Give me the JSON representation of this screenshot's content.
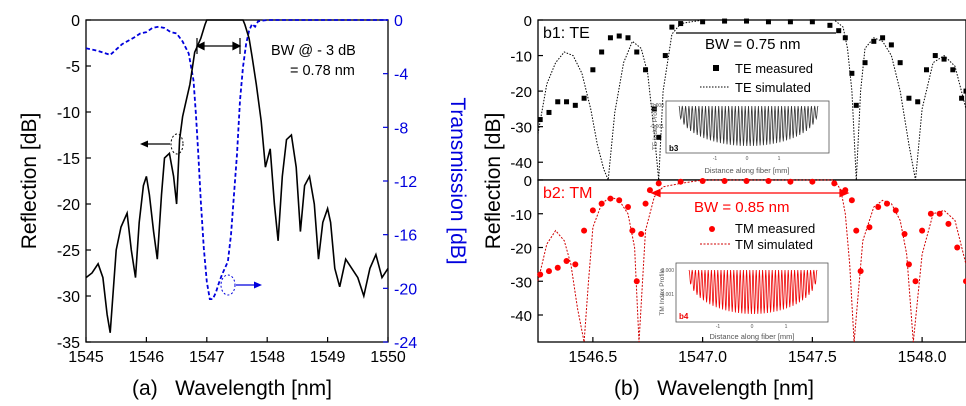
{
  "chart_data": [
    {
      "panel_label": "(a)",
      "type": "line",
      "xlabel": "Wavelength [nm]",
      "ylabel": "Reflection [dB]",
      "ylabel_right": "Transmission [dB]",
      "xlim": [
        1545,
        1550
      ],
      "ylim": [
        -35,
        0
      ],
      "ylim_right": [
        -24,
        0
      ],
      "x_ticks": [
        "1545",
        "1546",
        "1547",
        "1548",
        "1549",
        "1550"
      ],
      "y_ticks": [
        "0",
        "-5",
        "-10",
        "-15",
        "-20",
        "-25",
        "-30",
        "-35"
      ],
      "y_ticks_right": [
        "0",
        "-4",
        "-8",
        "-12",
        "-16",
        "-20",
        "-24"
      ],
      "annotation": [
        "BW @ - 3 dB",
        "= 0.78 nm"
      ],
      "colors": {
        "reflection": "#000000",
        "transmission": "#0000dd"
      },
      "series": [
        {
          "axis": "left",
          "style": "solid",
          "x": [
            1545.0,
            1545.1,
            1545.2,
            1545.28,
            1545.35,
            1545.4,
            1545.5,
            1545.58,
            1545.68,
            1545.75,
            1545.82,
            1545.88,
            1545.95,
            1546.0,
            1546.05,
            1546.12,
            1546.18,
            1546.25,
            1546.3,
            1546.38,
            1546.45,
            1546.5,
            1546.55,
            1546.6,
            1546.65,
            1546.72,
            1546.8,
            1546.9,
            1546.97,
            1547.0,
            1547.6,
            1547.63,
            1547.7,
            1547.75,
            1547.82,
            1547.9,
            1547.97,
            1548.05,
            1548.12,
            1548.18,
            1548.25,
            1548.32,
            1548.4,
            1548.48,
            1548.55,
            1548.62,
            1548.7,
            1548.78,
            1548.85,
            1548.92,
            1549.0,
            1549.05,
            1549.12,
            1549.2,
            1549.3,
            1549.4,
            1549.5,
            1549.6,
            1549.7,
            1549.8,
            1549.9,
            1550.0
          ],
          "y": [
            -28,
            -27.5,
            -26.5,
            -28,
            -32,
            -34,
            -25,
            -22.5,
            -21,
            -25,
            -28,
            -22,
            -18,
            -17,
            -19,
            -23,
            -26,
            -19,
            -15,
            -14.5,
            -17,
            -20,
            -13,
            -10.5,
            -9,
            -7,
            -3.5,
            -2,
            -0.5,
            0,
            0,
            -0.5,
            -2,
            -4,
            -7,
            -11,
            -16,
            -14,
            -20,
            -24,
            -17,
            -13,
            -12.5,
            -16,
            -23,
            -18,
            -17,
            -20,
            -26,
            -22,
            -20.5,
            -22,
            -27,
            -29,
            -26,
            -27,
            -28,
            -30,
            -27,
            -25.5,
            -28,
            -27
          ]
        },
        {
          "axis": "right",
          "style": "dashed",
          "x": [
            1545.0,
            1545.2,
            1545.4,
            1545.6,
            1545.8,
            1545.9,
            1546.0,
            1546.1,
            1546.2,
            1546.3,
            1546.4,
            1546.5,
            1546.6,
            1546.7,
            1546.78,
            1546.82,
            1546.86,
            1546.9,
            1546.95,
            1547.0,
            1547.05,
            1547.1,
            1547.15,
            1547.2,
            1547.25,
            1547.3,
            1547.35,
            1547.4,
            1547.45,
            1547.5,
            1547.55,
            1547.6,
            1547.65,
            1547.7,
            1547.75,
            1547.8,
            1547.85,
            1548.0,
            1548.5,
            1549.0,
            1549.5,
            1550.0
          ],
          "y": [
            -2.1,
            -2.3,
            -2.6,
            -1.8,
            -1.3,
            -1.0,
            -0.9,
            -0.6,
            -0.5,
            -0.6,
            -0.9,
            -1.0,
            -1.6,
            -2.5,
            -4.5,
            -7,
            -10,
            -13.5,
            -17,
            -19.5,
            -20.8,
            -20.8,
            -20.3,
            -19.6,
            -19.0,
            -18.5,
            -18.0,
            -16.0,
            -13.0,
            -10.0,
            -6.0,
            -3.5,
            -1.8,
            -0.8,
            -0.3,
            -0.5,
            -0.1,
            0,
            0,
            0,
            0,
            0
          ]
        }
      ]
    },
    {
      "panel_label": "b1: TE",
      "type": "scatter",
      "ylabel": "Reflection [dB]",
      "xlim": [
        1546.25,
        1548.2
      ],
      "ylim": [
        -45,
        0
      ],
      "y_ticks": [
        "0",
        "-10",
        "-20",
        "-30",
        "-40"
      ],
      "annotation": "BW = 0.75 nm",
      "legend_position": "center-right",
      "colors": {
        "measured": "#000000",
        "simulated": "#000000"
      },
      "series": [
        {
          "name": "TE measured",
          "style": "markers",
          "x": [
            1546.26,
            1546.3,
            1546.34,
            1546.38,
            1546.42,
            1546.46,
            1546.5,
            1546.54,
            1546.58,
            1546.62,
            1546.66,
            1546.7,
            1546.74,
            1546.78,
            1546.8,
            1546.83,
            1546.86,
            1546.9,
            1547.0,
            1547.1,
            1547.2,
            1547.3,
            1547.4,
            1547.5,
            1547.58,
            1547.62,
            1547.65,
            1547.68,
            1547.7,
            1547.74,
            1547.78,
            1547.82,
            1547.86,
            1547.9,
            1547.94,
            1547.98,
            1548.02,
            1548.06,
            1548.1,
            1548.14,
            1548.18,
            1548.2
          ],
          "y": [
            -28,
            -26,
            -23,
            -23,
            -24,
            -22,
            -14,
            -9,
            -5,
            -4.5,
            -5,
            -9,
            -14,
            -25,
            -33,
            -10,
            -2,
            -1,
            -0.5,
            -0.3,
            -0.3,
            -0.5,
            -0.5,
            -0.5,
            -1.5,
            -3,
            -5,
            -15,
            -24,
            -12,
            -6,
            -5,
            -7,
            -12,
            -22,
            -23,
            -14,
            -10,
            -11,
            -14,
            -22,
            -20
          ]
        },
        {
          "name": "TE simulated",
          "style": "dotted",
          "x": [
            1546.25,
            1546.29,
            1546.33,
            1546.37,
            1546.41,
            1546.45,
            1546.49,
            1546.52,
            1546.55,
            1546.57,
            1546.6,
            1546.64,
            1546.68,
            1546.72,
            1546.75,
            1546.78,
            1546.8,
            1546.82,
            1546.86,
            1546.9,
            1547.0,
            1547.6,
            1547.64,
            1547.66,
            1547.68,
            1547.7,
            1547.72,
            1547.74,
            1547.78,
            1547.82,
            1547.86,
            1547.9,
            1547.94,
            1547.97,
            1548.0,
            1548.05,
            1548.1,
            1548.15,
            1548.2
          ],
          "y": [
            -32,
            -18,
            -12,
            -9,
            -10,
            -15,
            -25,
            -35,
            -42,
            -45,
            -26,
            -12,
            -6,
            -8,
            -15,
            -32,
            -45,
            -20,
            -4,
            -1,
            0,
            0,
            -2,
            -8,
            -20,
            -45,
            -20,
            -8,
            -5,
            -6,
            -10,
            -20,
            -35,
            -45,
            -25,
            -12,
            -10,
            -13,
            -25
          ]
        }
      ]
    },
    {
      "panel_label": "b2: TM",
      "type": "scatter",
      "xlabel": "Wavelength [nm]",
      "xlim": [
        1546.25,
        1548.2
      ],
      "ylim": [
        -48,
        0
      ],
      "x_ticks": [
        "1546.5",
        "1547.0",
        "1547.5",
        "1548.0"
      ],
      "x_tick_values": [
        1546.5,
        1547.0,
        1547.5,
        1548.0
      ],
      "y_ticks": [
        "0",
        "-10",
        "-20",
        "-30",
        "-40"
      ],
      "annotation": "BW = 0.85 nm",
      "legend_position": "center-right",
      "colors": {
        "measured": "#ff0000",
        "simulated": "#d00000"
      },
      "series": [
        {
          "name": "TM measured",
          "style": "markers",
          "x": [
            1546.26,
            1546.3,
            1546.34,
            1546.38,
            1546.42,
            1546.46,
            1546.5,
            1546.54,
            1546.58,
            1546.62,
            1546.66,
            1546.68,
            1546.7,
            1546.72,
            1546.74,
            1546.76,
            1546.8,
            1546.9,
            1547.0,
            1547.1,
            1547.2,
            1547.3,
            1547.4,
            1547.5,
            1547.6,
            1547.65,
            1547.68,
            1547.7,
            1547.72,
            1547.76,
            1547.8,
            1547.84,
            1547.88,
            1547.92,
            1547.94,
            1547.97,
            1548.0,
            1548.04,
            1548.08,
            1548.12,
            1548.16,
            1548.2
          ],
          "y": [
            -28,
            -27,
            -26,
            -24,
            -25,
            -15,
            -9,
            -7,
            -5.5,
            -6,
            -8,
            -15,
            -30,
            -16,
            -7,
            -3,
            -1,
            -0.5,
            -0.3,
            -0.3,
            -0.3,
            -0.3,
            -0.5,
            -0.5,
            -1,
            -3,
            -6,
            -15,
            -27,
            -14,
            -8,
            -7,
            -9,
            -16,
            -25,
            -30,
            -15,
            -10,
            -10,
            -13,
            -20,
            -30
          ]
        },
        {
          "name": "TM simulated",
          "style": "dashed",
          "x": [
            1546.25,
            1546.29,
            1546.33,
            1546.37,
            1546.4,
            1546.43,
            1546.46,
            1546.48,
            1546.5,
            1546.54,
            1546.58,
            1546.62,
            1546.66,
            1546.69,
            1546.71,
            1546.74,
            1546.78,
            1546.82,
            1546.9,
            1547.0,
            1547.6,
            1547.63,
            1547.65,
            1547.67,
            1547.69,
            1547.73,
            1547.78,
            1547.82,
            1547.86,
            1547.9,
            1547.93,
            1547.96,
            1548.0,
            1548.05,
            1548.1,
            1548.15,
            1548.2
          ],
          "y": [
            -30,
            -19,
            -15,
            -18,
            -25,
            -38,
            -48,
            -30,
            -14,
            -7,
            -5,
            -6,
            -10,
            -20,
            -48,
            -15,
            -5,
            -2,
            -1,
            0,
            0,
            -3,
            -10,
            -25,
            -48,
            -18,
            -8,
            -6,
            -7,
            -12,
            -22,
            -48,
            -22,
            -10,
            -9,
            -12,
            -25
          ]
        }
      ]
    },
    {
      "panel_label": "b3",
      "type": "line",
      "xlabel": "Distance along fiber [mm]",
      "ylabel": "TE Index Profile",
      "y_ticks": [
        "0.000",
        "-0.001"
      ],
      "x_ticks": [
        "-1",
        "0",
        "1"
      ],
      "colors": {
        "profile": "#333333"
      }
    },
    {
      "panel_label": "b4",
      "type": "line",
      "xlabel": "Distance along fiber [mm]",
      "ylabel": "TM Index Profile",
      "y_ticks": [
        "0.000",
        "-0.001"
      ],
      "x_ticks": [
        "-1",
        "0",
        "1"
      ],
      "colors": {
        "profile": "#ee0000"
      }
    }
  ],
  "captions": {
    "a": "(a)   Wavelength [nm]",
    "b": "(b)   Wavelength [nm]"
  }
}
